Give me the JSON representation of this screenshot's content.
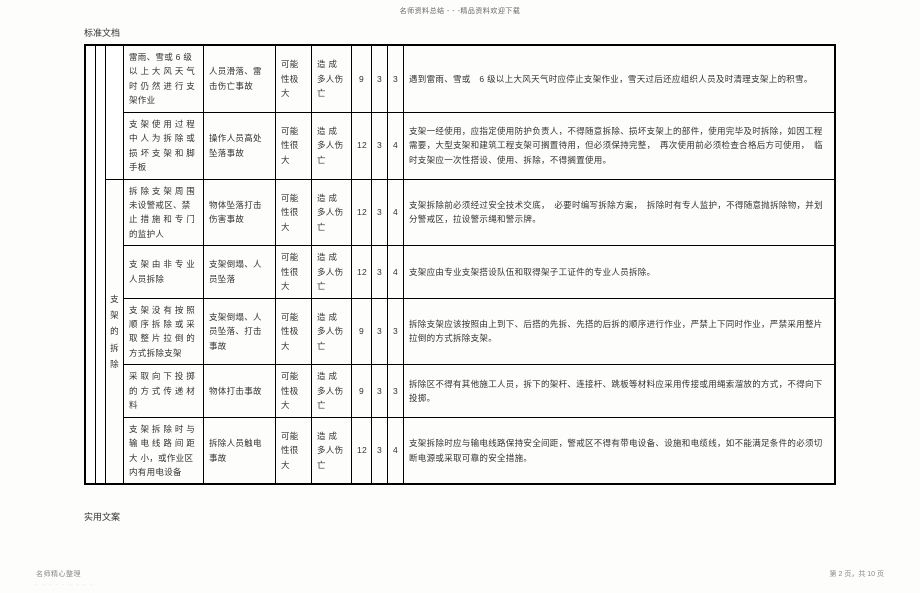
{
  "banner": "名师资料总结 - - -精品资料欢迎下载",
  "docLabel": "标准文档",
  "footerLeft": "实用文案",
  "credit": "名师精心整理",
  "creditSub": ". . . . . . . . .",
  "pageNum": "第 2 页，共 10 页",
  "category": "支架的拆除",
  "rows": [
    {
      "c1": "雷雨、雪或 6 级以 上 大 风 天 气时 仍 然 进 行 支架作业",
      "c2": "人员滑落、雷击伤亡事故",
      "c3": "可能性极大",
      "c4": "造 成 多人伤亡",
      "n1": "9",
      "n2": "3",
      "n3": "3",
      "c5": "遇到雷雨、雪或　6 级以上大风天气时应停止支架作业，雪天过后还应组织人员及时清理支架上的积雪。"
    },
    {
      "c1": "支 架 使 用 过 程中 人 为 拆 除 或损 坏 支 架 和 脚手板",
      "c2": "操作人员高处坠落事故",
      "c3": "可能性很大",
      "c4": "造 成 多人伤亡",
      "n1": "12",
      "n2": "3",
      "n3": "4",
      "c5": "支架一经使用，应指定使用防护负责人，不得随意拆除、损坏支架上的部件，使用完毕及时拆除，如因工程需要，大型支架和建筑工程支架可搁置待用，但必须保持完整，　再次使用前必须检查合格后方可使用，　临时支架应一次性搭设、使用、拆除，不得搁置使用。"
    },
    {
      "c1": "拆 除 支 架 周 围未设警戒区、禁止 措 施 和 专 门的监护人",
      "c2": "物体坠落打击伤害事故",
      "c3": "可能性很大",
      "c4": "造 成 多人伤亡",
      "n1": "12",
      "n2": "3",
      "n3": "4",
      "c5": "支架拆除前必须经过安全技术交底，　必要时编写拆除方案，　拆除时有专人监护，不得随意抛拆除物，并划分警戒区，拉设警示绳和警示牌。"
    },
    {
      "c1": "支 架 由 非 专 业人员拆除",
      "c2": "支架倒塌、人员坠落",
      "c3": "可能性很大",
      "c4": "造 成 多人伤亡",
      "n1": "12",
      "n2": "3",
      "n3": "4",
      "c5": "支架应由专业支架搭设队伍和取得架子工证件的专业人员拆除。"
    },
    {
      "c1": "支 架 没 有 按 照顺 序 拆 除 或 采取 整 片 拉 倒 的方式拆除支架",
      "c2": "支架倒塌、人员坠落、打击事故",
      "c3": "可能性极大",
      "c4": "造 成 多人伤亡",
      "n1": "9",
      "n2": "3",
      "n3": "3",
      "c5": "拆除支架应该按照由上到下、后搭的先拆、先搭的后拆的顺序进行作业，严禁上下同时作业，严禁采用整片拉倒的方式拆除支架。"
    },
    {
      "c1": "采 取 向 下 投 掷的 方 式 传 递 材料",
      "c2": "物体打击事故",
      "c3": "可能性极大",
      "c4": "造 成 多人伤亡",
      "n1": "9",
      "n2": "3",
      "n3": "3",
      "c5": "拆除区不得有其他施工人员，拆下的架杆、连接杆、跳板等材料应采用传接或用绳索溜放的方式，不得向下投掷。"
    },
    {
      "c1": "支 架 拆 除 时 与输 电 线 路 间 距大 小，或作业区内有用电设备",
      "c2": "拆除人员触电事故",
      "c3": "可能性很大",
      "c4": "造 成 多人伤亡",
      "n1": "12",
      "n2": "3",
      "n3": "4",
      "c5": "支架拆除时应与输电线路保持安全间距，警戒区不得有带电设备、设施和电缆线，如不能满足条件的必须切断电源或采取可靠的安全措施。"
    }
  ]
}
